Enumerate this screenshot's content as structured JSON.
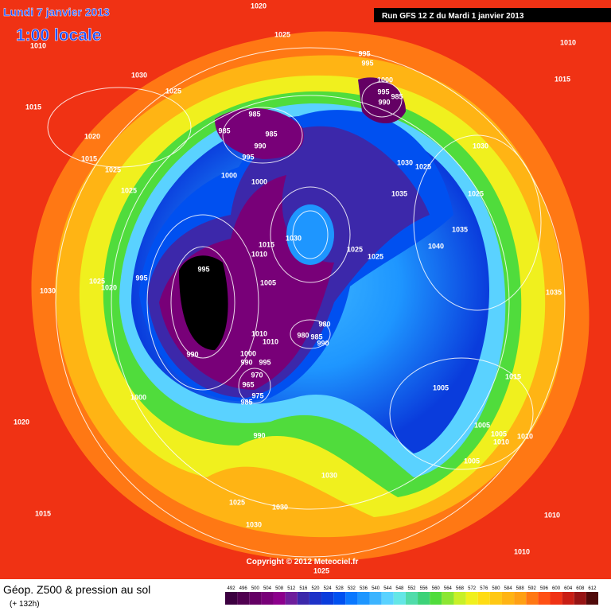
{
  "header": {
    "date": "Lundi 7 janvier 2013",
    "time": "1:00 locale",
    "run": "Run GFS 12 Z du Mardi 1 janvier 2013"
  },
  "copyright": "Copyright © 2012 Meteociel.fr",
  "legend": {
    "title": "Géop. Z500 & pression au sol",
    "subtitle": "(+ 132h)",
    "scale": [
      492,
      496,
      500,
      504,
      508,
      512,
      516,
      520,
      524,
      528,
      532,
      536,
      540,
      544,
      548,
      552,
      556,
      560,
      564,
      568,
      572,
      576,
      580,
      584,
      588,
      592,
      596,
      600,
      604,
      608,
      612
    ],
    "colors": [
      "#3c0040",
      "#500050",
      "#640064",
      "#780078",
      "#8c008c",
      "#6e1e9b",
      "#3c28aa",
      "#1e32c8",
      "#0a3cdc",
      "#0050f0",
      "#0a78ff",
      "#1e96ff",
      "#3cb4ff",
      "#5ad2ff",
      "#64e6e6",
      "#50dcaa",
      "#3cd278",
      "#50dc3c",
      "#8ce632",
      "#c8f028",
      "#f0f01e",
      "#ffdc14",
      "#ffc814",
      "#ffb414",
      "#ffa014",
      "#ff7814",
      "#ff5014",
      "#f03214",
      "#c81e14",
      "#961414",
      "#500a0a"
    ]
  },
  "isobar_labels": [
    "1020",
    "1010",
    "1025",
    "1030",
    "1015",
    "1025",
    "1020",
    "1015",
    "1025",
    "1025",
    "995",
    "995",
    "1000",
    "995",
    "990",
    "985",
    "985",
    "985",
    "985",
    "990",
    "995",
    "1000",
    "1000",
    "1030",
    "1025",
    "1035",
    "1035",
    "1040",
    "1030",
    "1015",
    "1010",
    "1025",
    "1025",
    "995",
    "995",
    "1005",
    "1030",
    "1025",
    "1020",
    "1035",
    "1010",
    "1010",
    "980",
    "980",
    "985",
    "990",
    "1000",
    "990",
    "995",
    "990",
    "970",
    "965",
    "975",
    "985",
    "1000",
    "1005",
    "1015",
    "1005",
    "1005",
    "1010",
    "1010",
    "1005",
    "990",
    "1030",
    "1020",
    "1010",
    "1015",
    "1030",
    "1025",
    "1025",
    "1030",
    "1030",
    "1015",
    "1010",
    "1010",
    "1025"
  ]
}
